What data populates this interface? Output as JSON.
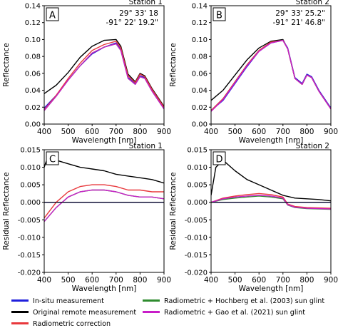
{
  "chart_data": [
    {
      "type": "line",
      "panel": "A",
      "station": "Station 1",
      "coordinates": [
        "29° 33' 18",
        "-91° 22' 19.2\""
      ],
      "xlabel": "Wavelength [nm]",
      "ylabel": "Reflectance",
      "xlim": [
        400,
        900
      ],
      "ylim": [
        0.0,
        0.14
      ],
      "xticks": [
        400,
        500,
        600,
        700,
        800,
        900
      ],
      "yticks": [
        0.0,
        0.02,
        0.04,
        0.06,
        0.08,
        0.1,
        0.12,
        0.14
      ],
      "ytick_labels": [
        "0.00",
        "0.02",
        "0.04",
        "0.06",
        "0.08",
        "0.10",
        "0.12",
        "0.14"
      ],
      "series": [
        {
          "key": "insitu",
          "x": [
            400,
            450,
            500,
            550,
            600,
            650,
            700,
            720,
            750,
            780,
            800,
            820,
            850,
            900
          ],
          "y": [
            0.019,
            0.034,
            0.052,
            0.069,
            0.083,
            0.091,
            0.096,
            0.088,
            0.055,
            0.048,
            0.057,
            0.055,
            0.04,
            0.018
          ]
        },
        {
          "key": "remote",
          "x": [
            400,
            450,
            500,
            550,
            600,
            650,
            700,
            720,
            750,
            780,
            800,
            820,
            850,
            900
          ],
          "y": [
            0.036,
            0.046,
            0.061,
            0.079,
            0.092,
            0.099,
            0.1,
            0.092,
            0.059,
            0.05,
            0.06,
            0.057,
            0.042,
            0.021
          ]
        },
        {
          "key": "radiometric",
          "x": [
            400,
            450,
            500,
            550,
            600,
            650,
            700,
            720,
            750,
            780,
            800,
            820,
            850,
            900
          ],
          "y": [
            0.017,
            0.034,
            0.054,
            0.072,
            0.087,
            0.094,
            0.098,
            0.09,
            0.057,
            0.049,
            0.059,
            0.056,
            0.041,
            0.02
          ]
        },
        {
          "key": "hochberg",
          "x": [
            400,
            450,
            500,
            550,
            600,
            650,
            700,
            720,
            750,
            780,
            800,
            820,
            850,
            900
          ],
          "y": [
            0.016,
            0.033,
            0.052,
            0.069,
            0.084,
            0.091,
            0.095,
            0.087,
            0.054,
            0.047,
            0.056,
            0.054,
            0.039,
            0.018
          ]
        },
        {
          "key": "gao",
          "x": [
            400,
            450,
            500,
            550,
            600,
            650,
            700,
            720,
            750,
            780,
            800,
            820,
            850,
            900
          ],
          "y": [
            0.016,
            0.033,
            0.052,
            0.069,
            0.084,
            0.091,
            0.095,
            0.087,
            0.054,
            0.047,
            0.056,
            0.054,
            0.039,
            0.018
          ]
        }
      ]
    },
    {
      "type": "line",
      "panel": "B",
      "station": "Station 2",
      "coordinates": [
        "29° 33' 25.2\"",
        "-91° 21' 46.8\""
      ],
      "xlabel": "Wavelength [nm]",
      "ylabel": "Reflectance",
      "xlim": [
        400,
        900
      ],
      "ylim": [
        0.0,
        0.14
      ],
      "xticks": [
        400,
        500,
        600,
        700,
        800,
        900
      ],
      "yticks": [
        0.0,
        0.02,
        0.04,
        0.06,
        0.08,
        0.1,
        0.12,
        0.14
      ],
      "ytick_labels": [
        "0.00",
        "0.02",
        "0.04",
        "0.06",
        "0.08",
        "0.10",
        "0.12",
        "0.14"
      ],
      "series": [
        {
          "key": "insitu",
          "x": [
            400,
            450,
            500,
            550,
            600,
            650,
            700,
            720,
            750,
            780,
            800,
            820,
            850,
            900
          ],
          "y": [
            0.016,
            0.028,
            0.048,
            0.068,
            0.086,
            0.096,
            0.099,
            0.09,
            0.055,
            0.048,
            0.059,
            0.056,
            0.04,
            0.019
          ]
        },
        {
          "key": "remote",
          "x": [
            400,
            450,
            500,
            550,
            600,
            650,
            700,
            720,
            750,
            780,
            800,
            820,
            850,
            900
          ],
          "y": [
            0.028,
            0.04,
            0.058,
            0.076,
            0.09,
            0.098,
            0.1,
            0.089,
            0.054,
            0.047,
            0.058,
            0.055,
            0.039,
            0.018
          ]
        },
        {
          "key": "radiometric",
          "x": [
            400,
            450,
            500,
            550,
            600,
            650,
            700,
            720,
            750,
            780,
            800,
            820,
            850,
            900
          ],
          "y": [
            0.016,
            0.03,
            0.05,
            0.07,
            0.087,
            0.097,
            0.099,
            0.089,
            0.054,
            0.047,
            0.058,
            0.055,
            0.039,
            0.018
          ]
        },
        {
          "key": "hochberg",
          "x": [
            400,
            450,
            500,
            550,
            600,
            650,
            700,
            720,
            750,
            780,
            800,
            820,
            850,
            900
          ],
          "y": [
            0.016,
            0.03,
            0.05,
            0.07,
            0.087,
            0.097,
            0.099,
            0.089,
            0.054,
            0.047,
            0.058,
            0.055,
            0.039,
            0.018
          ]
        },
        {
          "key": "gao",
          "x": [
            400,
            450,
            500,
            550,
            600,
            650,
            700,
            720,
            750,
            780,
            800,
            820,
            850,
            900
          ],
          "y": [
            0.015,
            0.029,
            0.049,
            0.069,
            0.086,
            0.096,
            0.099,
            0.089,
            0.054,
            0.047,
            0.058,
            0.055,
            0.039,
            0.018
          ]
        }
      ]
    },
    {
      "type": "line",
      "panel": "C",
      "station": "Station 1",
      "xlabel": "Wavelength [nm]",
      "ylabel": "Residual Reflectance",
      "xlim": [
        400,
        900
      ],
      "ylim": [
        -0.02,
        0.015
      ],
      "xticks": [
        400,
        500,
        600,
        700,
        800,
        900
      ],
      "yticks": [
        -0.02,
        -0.015,
        -0.01,
        -0.005,
        0.0,
        0.005,
        0.01,
        0.015
      ],
      "ytick_labels": [
        "-0.020",
        "-0.015",
        "-0.010",
        "-0.005",
        "0.000",
        "0.005",
        "0.010",
        "0.015"
      ],
      "series": [
        {
          "key": "insitu",
          "x": [
            400,
            450,
            500,
            550,
            600,
            650,
            700,
            750,
            800,
            850,
            900
          ],
          "y": [
            0.0,
            0.0,
            0.0,
            0.0,
            0.0,
            0.0,
            0.0,
            0.0,
            0.0,
            0.0,
            0.0
          ]
        },
        {
          "key": "remote",
          "x": [
            400,
            420,
            450,
            500,
            550,
            600,
            650,
            700,
            750,
            800,
            850,
            900
          ],
          "y": [
            0.01,
            0.014,
            0.012,
            0.011,
            0.01,
            0.0095,
            0.009,
            0.008,
            0.0075,
            0.007,
            0.0065,
            0.0055
          ]
        },
        {
          "key": "radiometric",
          "x": [
            400,
            450,
            500,
            550,
            600,
            650,
            700,
            750,
            800,
            850,
            900
          ],
          "y": [
            -0.0045,
            0.0,
            0.003,
            0.0045,
            0.005,
            0.005,
            0.0045,
            0.0035,
            0.0035,
            0.003,
            0.003
          ]
        },
        {
          "key": "hochberg",
          "x": [
            400,
            450,
            500,
            550,
            600,
            650,
            700,
            750,
            800,
            850,
            900
          ],
          "y": [
            -0.0055,
            -0.0015,
            0.0015,
            0.003,
            0.0035,
            0.0035,
            0.003,
            0.002,
            0.0015,
            0.0015,
            0.001
          ]
        },
        {
          "key": "gao",
          "x": [
            400,
            450,
            500,
            550,
            600,
            650,
            700,
            750,
            800,
            850,
            900
          ],
          "y": [
            -0.0055,
            -0.0015,
            0.0015,
            0.003,
            0.0035,
            0.0035,
            0.003,
            0.002,
            0.0015,
            0.0015,
            0.001
          ]
        }
      ]
    },
    {
      "type": "line",
      "panel": "D",
      "station": "Station 2",
      "xlabel": "Wavelength [nm]",
      "ylabel": "Residual Reflectance",
      "xlim": [
        400,
        900
      ],
      "ylim": [
        -0.02,
        0.015
      ],
      "xticks": [
        400,
        500,
        600,
        700,
        800,
        900
      ],
      "yticks": [
        -0.02,
        -0.015,
        -0.01,
        -0.005,
        0.0,
        0.005,
        0.01,
        0.015
      ],
      "ytick_labels": [
        "-0.020",
        "-0.015",
        "-0.010",
        "-0.005",
        "0.000",
        "0.005",
        "0.010",
        "0.015"
      ],
      "series": [
        {
          "key": "insitu",
          "x": [
            400,
            450,
            500,
            550,
            600,
            650,
            700,
            750,
            800,
            850,
            900
          ],
          "y": [
            0.0,
            0.0,
            0.0,
            0.0,
            0.0,
            0.0,
            0.0,
            0.0,
            0.0,
            0.0,
            0.0
          ]
        },
        {
          "key": "remote",
          "x": [
            400,
            420,
            450,
            500,
            550,
            600,
            650,
            700,
            750,
            800,
            850,
            900
          ],
          "y": [
            0.002,
            0.01,
            0.012,
            0.009,
            0.0065,
            0.005,
            0.0035,
            0.002,
            0.0012,
            0.001,
            0.0008,
            0.0004
          ]
        },
        {
          "key": "radiometric",
          "x": [
            400,
            450,
            500,
            550,
            600,
            650,
            700,
            720,
            750,
            800,
            850,
            900
          ],
          "y": [
            0.0,
            0.0012,
            0.0018,
            0.0022,
            0.0025,
            0.0022,
            0.0015,
            -0.0005,
            -0.0012,
            -0.0015,
            -0.0016,
            -0.0017
          ]
        },
        {
          "key": "hochberg",
          "x": [
            400,
            450,
            500,
            550,
            600,
            650,
            700,
            720,
            750,
            800,
            850,
            900
          ],
          "y": [
            0.0,
            0.0008,
            0.0012,
            0.0015,
            0.0018,
            0.0015,
            0.001,
            -0.0008,
            -0.0015,
            -0.0018,
            -0.0019,
            -0.002
          ]
        },
        {
          "key": "gao",
          "x": [
            400,
            450,
            500,
            550,
            600,
            650,
            700,
            720,
            750,
            800,
            850,
            900
          ],
          "y": [
            0.0,
            0.001,
            0.0015,
            0.0018,
            0.002,
            0.0018,
            0.0012,
            -0.0007,
            -0.0014,
            -0.0017,
            -0.0018,
            -0.0019
          ]
        }
      ]
    }
  ],
  "legend": {
    "entries": [
      {
        "key": "insitu",
        "label": "In-situ measurement",
        "color": "#1f1fdc"
      },
      {
        "key": "remote",
        "label": "Original remote measurement",
        "color": "#000000"
      },
      {
        "key": "radiometric",
        "label": "Radiometric correction",
        "color": "#e8383c"
      },
      {
        "key": "hochberg",
        "label": "Radiometric + Hochberg et al. (2003) sun glint",
        "color": "#2e8b2e"
      },
      {
        "key": "gao",
        "label": "Radiometric + Gao et al. (2021) sun glint",
        "color": "#c81ec8"
      }
    ]
  }
}
